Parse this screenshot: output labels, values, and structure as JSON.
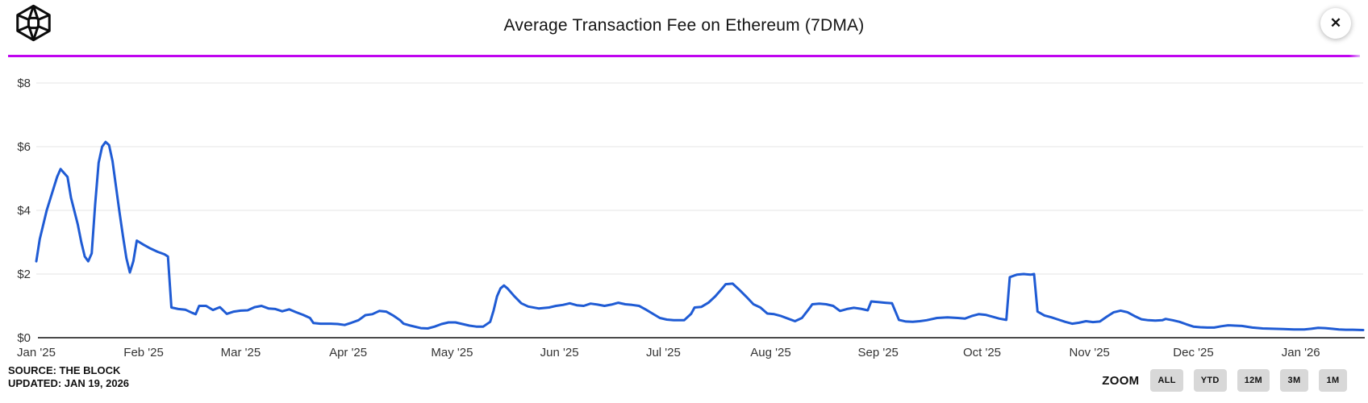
{
  "header": {
    "title": "Average Transaction Fee on Ethereum (7DMA)",
    "logo_name": "the-block-logo",
    "close_glyph": "✕"
  },
  "colors": {
    "line": "#1f5bd4",
    "divider": "#c004f0",
    "grid": "#e6e6e6",
    "axis": "#4a4a4a",
    "tick_text": "#333333",
    "button_bg": "#d8d8d8"
  },
  "footer": {
    "source_line1": "SOURCE: THE BLOCK",
    "source_line2": "UPDATED: JAN 19, 2026",
    "zoom_label": "ZOOM",
    "zoom_buttons": [
      "ALL",
      "YTD",
      "12M",
      "3M",
      "1M"
    ]
  },
  "chart_data": {
    "type": "line",
    "title": "Average Transaction Fee on Ethereum (7DMA)",
    "xlabel": "",
    "ylabel": "",
    "ylim": [
      0,
      8
    ],
    "y_tick_prefix": "$",
    "y_ticks": [
      "$0",
      "$2",
      "$4",
      "$6",
      "$8"
    ],
    "x_tick_labels": [
      "Jan '25",
      "Feb '25",
      "Mar '25",
      "Apr '25",
      "May '25",
      "Jun '25",
      "Jul '25",
      "Aug '25",
      "Sep '25",
      "Oct '25",
      "Nov '25",
      "Dec '25",
      "Jan '26"
    ],
    "xlim": [
      "2025-01-01",
      "2026-01-19"
    ],
    "grid": "horizontal-only",
    "legend": "none",
    "series": [
      {
        "name": "Average Transaction Fee on Ethereum (USD, 7DMA)",
        "points": [
          [
            "2025-01-01",
            2.4
          ],
          [
            "2025-01-02",
            3.1
          ],
          [
            "2025-01-04",
            4.0
          ],
          [
            "2025-01-06",
            4.7
          ],
          [
            "2025-01-07",
            5.05
          ],
          [
            "2025-01-08",
            5.3
          ],
          [
            "2025-01-10",
            5.05
          ],
          [
            "2025-01-11",
            4.4
          ],
          [
            "2025-01-13",
            3.55
          ],
          [
            "2025-01-14",
            3.0
          ],
          [
            "2025-01-15",
            2.55
          ],
          [
            "2025-01-16",
            2.4
          ],
          [
            "2025-01-17",
            2.65
          ],
          [
            "2025-01-18",
            4.2
          ],
          [
            "2025-01-19",
            5.5
          ],
          [
            "2025-01-20",
            6.0
          ],
          [
            "2025-01-21",
            6.15
          ],
          [
            "2025-01-22",
            6.05
          ],
          [
            "2025-01-23",
            5.55
          ],
          [
            "2025-01-24",
            4.75
          ],
          [
            "2025-01-25",
            3.95
          ],
          [
            "2025-01-26",
            3.2
          ],
          [
            "2025-01-27",
            2.5
          ],
          [
            "2025-01-28",
            2.05
          ],
          [
            "2025-01-29",
            2.4
          ],
          [
            "2025-01-30",
            3.05
          ],
          [
            "2025-02-01",
            2.92
          ],
          [
            "2025-02-03",
            2.8
          ],
          [
            "2025-02-05",
            2.7
          ],
          [
            "2025-02-07",
            2.62
          ],
          [
            "2025-02-08",
            2.55
          ],
          [
            "2025-02-09",
            0.95
          ],
          [
            "2025-02-11",
            0.9
          ],
          [
            "2025-02-13",
            0.88
          ],
          [
            "2025-02-15",
            0.78
          ],
          [
            "2025-02-16",
            0.74
          ],
          [
            "2025-02-17",
            1.0
          ],
          [
            "2025-02-19",
            1.0
          ],
          [
            "2025-02-21",
            0.87
          ],
          [
            "2025-02-23",
            0.96
          ],
          [
            "2025-02-25",
            0.75
          ],
          [
            "2025-02-27",
            0.82
          ],
          [
            "2025-03-01",
            0.85
          ],
          [
            "2025-03-03",
            0.86
          ],
          [
            "2025-03-05",
            0.96
          ],
          [
            "2025-03-07",
            1.0
          ],
          [
            "2025-03-09",
            0.92
          ],
          [
            "2025-03-11",
            0.9
          ],
          [
            "2025-03-13",
            0.83
          ],
          [
            "2025-03-15",
            0.89
          ],
          [
            "2025-03-17",
            0.8
          ],
          [
            "2025-03-19",
            0.72
          ],
          [
            "2025-03-21",
            0.62
          ],
          [
            "2025-03-22",
            0.46
          ],
          [
            "2025-03-24",
            0.44
          ],
          [
            "2025-03-27",
            0.44
          ],
          [
            "2025-03-29",
            0.43
          ],
          [
            "2025-03-31",
            0.4
          ],
          [
            "2025-04-02",
            0.47
          ],
          [
            "2025-04-04",
            0.55
          ],
          [
            "2025-04-06",
            0.71
          ],
          [
            "2025-04-08",
            0.74
          ],
          [
            "2025-04-10",
            0.84
          ],
          [
            "2025-04-12",
            0.82
          ],
          [
            "2025-04-14",
            0.7
          ],
          [
            "2025-04-16",
            0.55
          ],
          [
            "2025-04-17",
            0.44
          ],
          [
            "2025-04-19",
            0.38
          ],
          [
            "2025-04-22",
            0.3
          ],
          [
            "2025-04-24",
            0.29
          ],
          [
            "2025-04-26",
            0.35
          ],
          [
            "2025-04-28",
            0.43
          ],
          [
            "2025-04-30",
            0.48
          ],
          [
            "2025-05-02",
            0.48
          ],
          [
            "2025-05-04",
            0.43
          ],
          [
            "2025-05-06",
            0.38
          ],
          [
            "2025-05-08",
            0.35
          ],
          [
            "2025-05-10",
            0.35
          ],
          [
            "2025-05-12",
            0.5
          ],
          [
            "2025-05-13",
            0.85
          ],
          [
            "2025-05-14",
            1.3
          ],
          [
            "2025-05-15",
            1.55
          ],
          [
            "2025-05-16",
            1.64
          ],
          [
            "2025-05-17",
            1.55
          ],
          [
            "2025-05-19",
            1.3
          ],
          [
            "2025-05-21",
            1.08
          ],
          [
            "2025-05-23",
            0.98
          ],
          [
            "2025-05-26",
            0.92
          ],
          [
            "2025-05-29",
            0.95
          ],
          [
            "2025-05-31",
            1.0
          ],
          [
            "2025-06-02",
            1.03
          ],
          [
            "2025-06-04",
            1.08
          ],
          [
            "2025-06-06",
            1.02
          ],
          [
            "2025-06-08",
            1.0
          ],
          [
            "2025-06-10",
            1.07
          ],
          [
            "2025-06-12",
            1.04
          ],
          [
            "2025-06-14",
            1.0
          ],
          [
            "2025-06-16",
            1.04
          ],
          [
            "2025-06-18",
            1.1
          ],
          [
            "2025-06-20",
            1.05
          ],
          [
            "2025-06-22",
            1.03
          ],
          [
            "2025-06-24",
            1.0
          ],
          [
            "2025-06-26",
            0.88
          ],
          [
            "2025-06-28",
            0.75
          ],
          [
            "2025-06-30",
            0.62
          ],
          [
            "2025-07-02",
            0.57
          ],
          [
            "2025-07-04",
            0.55
          ],
          [
            "2025-07-07",
            0.55
          ],
          [
            "2025-07-09",
            0.75
          ],
          [
            "2025-07-10",
            0.95
          ],
          [
            "2025-07-12",
            0.97
          ],
          [
            "2025-07-14",
            1.1
          ],
          [
            "2025-07-16",
            1.3
          ],
          [
            "2025-07-18",
            1.55
          ],
          [
            "2025-07-19",
            1.68
          ],
          [
            "2025-07-21",
            1.7
          ],
          [
            "2025-07-23",
            1.5
          ],
          [
            "2025-07-25",
            1.28
          ],
          [
            "2025-07-27",
            1.05
          ],
          [
            "2025-07-29",
            0.95
          ],
          [
            "2025-07-31",
            0.76
          ],
          [
            "2025-08-02",
            0.74
          ],
          [
            "2025-08-04",
            0.68
          ],
          [
            "2025-08-06",
            0.6
          ],
          [
            "2025-08-08",
            0.52
          ],
          [
            "2025-08-10",
            0.62
          ],
          [
            "2025-08-12",
            0.9
          ],
          [
            "2025-08-13",
            1.05
          ],
          [
            "2025-08-15",
            1.07
          ],
          [
            "2025-08-17",
            1.05
          ],
          [
            "2025-08-19",
            1.0
          ],
          [
            "2025-08-21",
            0.84
          ],
          [
            "2025-08-23",
            0.9
          ],
          [
            "2025-08-25",
            0.94
          ],
          [
            "2025-08-27",
            0.91
          ],
          [
            "2025-08-29",
            0.86
          ],
          [
            "2025-08-30",
            1.14
          ],
          [
            "2025-09-01",
            1.12
          ],
          [
            "2025-09-03",
            1.1
          ],
          [
            "2025-09-05",
            1.08
          ],
          [
            "2025-09-07",
            0.56
          ],
          [
            "2025-09-09",
            0.51
          ],
          [
            "2025-09-11",
            0.5
          ],
          [
            "2025-09-13",
            0.52
          ],
          [
            "2025-09-15",
            0.55
          ],
          [
            "2025-09-18",
            0.62
          ],
          [
            "2025-09-21",
            0.64
          ],
          [
            "2025-09-24",
            0.62
          ],
          [
            "2025-09-26",
            0.6
          ],
          [
            "2025-09-28",
            0.68
          ],
          [
            "2025-09-30",
            0.74
          ],
          [
            "2025-10-02",
            0.72
          ],
          [
            "2025-10-04",
            0.66
          ],
          [
            "2025-10-06",
            0.6
          ],
          [
            "2025-10-08",
            0.56
          ],
          [
            "2025-10-09",
            1.9
          ],
          [
            "2025-10-11",
            1.98
          ],
          [
            "2025-10-13",
            2.0
          ],
          [
            "2025-10-15",
            1.98
          ],
          [
            "2025-10-16",
            2.0
          ],
          [
            "2025-10-17",
            0.82
          ],
          [
            "2025-10-19",
            0.7
          ],
          [
            "2025-10-21",
            0.64
          ],
          [
            "2025-10-23",
            0.57
          ],
          [
            "2025-10-25",
            0.5
          ],
          [
            "2025-10-27",
            0.44
          ],
          [
            "2025-10-29",
            0.47
          ],
          [
            "2025-10-31",
            0.52
          ],
          [
            "2025-11-02",
            0.49
          ],
          [
            "2025-11-04",
            0.51
          ],
          [
            "2025-11-06",
            0.66
          ],
          [
            "2025-11-08",
            0.8
          ],
          [
            "2025-11-10",
            0.85
          ],
          [
            "2025-11-12",
            0.8
          ],
          [
            "2025-11-14",
            0.68
          ],
          [
            "2025-11-16",
            0.58
          ],
          [
            "2025-11-18",
            0.55
          ],
          [
            "2025-11-20",
            0.54
          ],
          [
            "2025-11-22",
            0.55
          ],
          [
            "2025-11-23",
            0.59
          ],
          [
            "2025-11-25",
            0.55
          ],
          [
            "2025-11-27",
            0.5
          ],
          [
            "2025-11-29",
            0.42
          ],
          [
            "2025-12-01",
            0.35
          ],
          [
            "2025-12-03",
            0.33
          ],
          [
            "2025-12-05",
            0.32
          ],
          [
            "2025-12-07",
            0.32
          ],
          [
            "2025-12-09",
            0.36
          ],
          [
            "2025-12-11",
            0.39
          ],
          [
            "2025-12-13",
            0.38
          ],
          [
            "2025-12-15",
            0.37
          ],
          [
            "2025-12-18",
            0.32
          ],
          [
            "2025-12-21",
            0.29
          ],
          [
            "2025-12-24",
            0.28
          ],
          [
            "2025-12-27",
            0.27
          ],
          [
            "2025-12-30",
            0.26
          ],
          [
            "2026-01-02",
            0.26
          ],
          [
            "2026-01-04",
            0.28
          ],
          [
            "2026-01-06",
            0.31
          ],
          [
            "2026-01-08",
            0.3
          ],
          [
            "2026-01-10",
            0.28
          ],
          [
            "2026-01-12",
            0.26
          ],
          [
            "2026-01-14",
            0.25
          ],
          [
            "2026-01-16",
            0.25
          ],
          [
            "2026-01-19",
            0.24
          ]
        ]
      }
    ]
  }
}
